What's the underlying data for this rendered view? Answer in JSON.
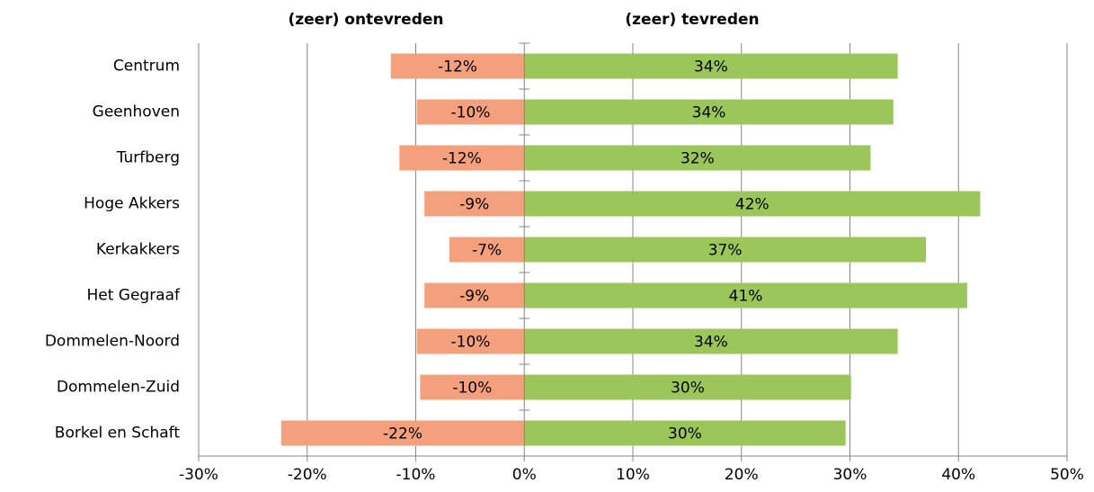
{
  "chart_data": {
    "type": "diverging-bar",
    "categories": [
      "Centrum",
      "Geenhoven",
      "Turfberg",
      "Hoge Akkers",
      "Kerkakkers",
      "Het Gegraaf",
      "Dommelen-Noord",
      "Dommelen-Zuid",
      "Borkel en Schaft"
    ],
    "series": [
      {
        "name": "(zeer) ontevreden",
        "color": "#f4a07c",
        "values": [
          -12.3,
          -9.9,
          -11.5,
          -9.2,
          -6.9,
          -9.2,
          -9.9,
          -9.6,
          -22.4
        ],
        "value_labels": [
          "-12%",
          "-10%",
          "-12%",
          "-9%",
          "-7%",
          "-9%",
          "-10%",
          "-10%",
          "-22%"
        ]
      },
      {
        "name": "(zeer) tevreden",
        "color": "#9bc65a",
        "values": [
          34.4,
          34.0,
          31.9,
          42.0,
          37.0,
          40.8,
          34.4,
          30.1,
          29.6
        ],
        "value_labels": [
          "34%",
          "34%",
          "32%",
          "42%",
          "37%",
          "41%",
          "34%",
          "30%",
          "30%"
        ]
      }
    ],
    "xlim": [
      -30,
      50
    ],
    "xticks": [
      {
        "value": -30,
        "label": "-30%"
      },
      {
        "value": -20,
        "label": "-20%"
      },
      {
        "value": -10,
        "label": "-10%"
      },
      {
        "value": 0,
        "label": "0%"
      },
      {
        "value": 10,
        "label": "10%"
      },
      {
        "value": 20,
        "label": "20%"
      },
      {
        "value": 30,
        "label": "30%"
      },
      {
        "value": 40,
        "label": "40%"
      },
      {
        "value": 50,
        "label": "50%"
      }
    ],
    "grid": true
  }
}
